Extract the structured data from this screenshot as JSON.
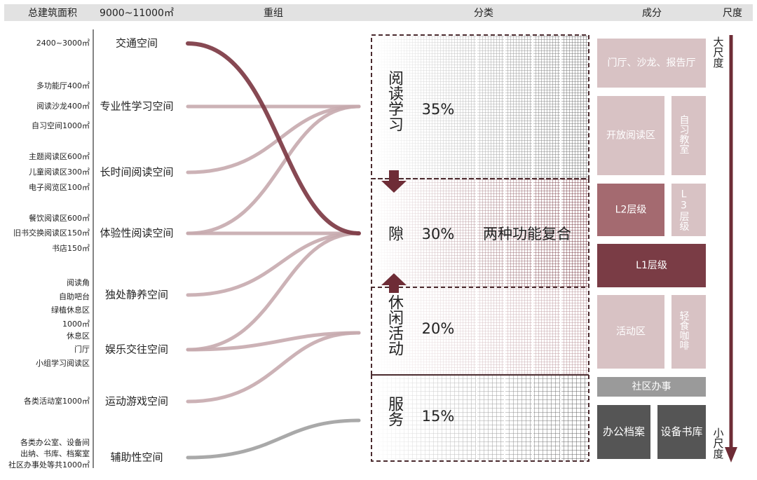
{
  "header": {
    "total_area": "总建筑面积",
    "area_range": "9000~11000㎡",
    "regroup": "重组",
    "classification": "分类",
    "components": "成分",
    "scale": "尺度"
  },
  "areas": [
    "2400~3000㎡",
    "多功能厅400㎡",
    "阅读沙龙400㎡",
    "自习空间1000㎡",
    "主题阅读区600㎡",
    "儿童阅读区300㎡",
    "电子阅览区100㎡",
    "餐饮阅读区600㎡",
    "旧书交换阅读区150㎡",
    "书店150㎡",
    "阅读角",
    "自助吧台",
    "绿植休息区",
    "1000㎡",
    "休息区",
    "门厅",
    "小组学习阅读区",
    "各类活动室1000㎡",
    "各类办公室、设备间",
    "出纳、书库、档案室",
    "社区办事处等共1000㎡"
  ],
  "spaces": [
    "交通空间",
    "专业性学习空间",
    "长时间阅读空间",
    "体验性阅读空间",
    "独处静养空间",
    "娱乐交往空间",
    "运动游戏空间",
    "辅助性空间"
  ],
  "categories": [
    {
      "name": "阅读学习",
      "share": "35%"
    },
    {
      "name": "隙",
      "share": "30%",
      "note": "两种功能复合"
    },
    {
      "name": "休闲活动",
      "share": "20%"
    },
    {
      "name": "服务",
      "share": "15%"
    }
  ],
  "components": [
    "门厅、沙龙、报告厅",
    "开放阅读区",
    "自习教室",
    "L2层级",
    "L3层级",
    "L1层级",
    "活动区",
    "轻食咖啡",
    "社区办事",
    "办公档案",
    "设备书库"
  ],
  "scale": {
    "large": "大尺度",
    "small": "小尺度"
  }
}
